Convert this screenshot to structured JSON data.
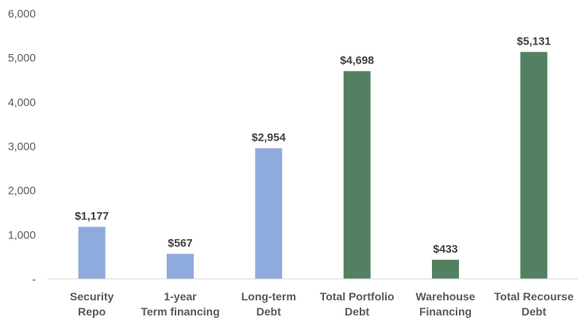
{
  "chart_data": {
    "type": "bar",
    "categories": [
      [
        "Security",
        "Repo"
      ],
      [
        "1-year",
        "Term financing"
      ],
      [
        "Long-term",
        "Debt"
      ],
      [
        "Total Portfolio",
        "Debt"
      ],
      [
        "Warehouse",
        "Financing"
      ],
      [
        "Total Recourse",
        "Debt"
      ]
    ],
    "values": [
      1177,
      567,
      2954,
      4698,
      433,
      5131
    ],
    "data_labels": [
      "$1,177",
      "$567",
      "$2,954",
      "$4,698",
      "$433",
      "$5,131"
    ],
    "bar_colors": [
      "#8FAADC",
      "#8FAADC",
      "#8FAADC",
      "#548062",
      "#548062",
      "#548062"
    ],
    "y_ticks": [
      {
        "value": 0,
        "label": "-"
      },
      {
        "value": 1000,
        "label": "1,000"
      },
      {
        "value": 2000,
        "label": "2,000"
      },
      {
        "value": 3000,
        "label": "3,000"
      },
      {
        "value": 4000,
        "label": "4,000"
      },
      {
        "value": 5000,
        "label": "5,000"
      },
      {
        "value": 6000,
        "label": "6,000"
      }
    ],
    "ylim": [
      0,
      6000
    ],
    "grid": false,
    "legend": "none",
    "title": "",
    "xlabel": "",
    "ylabel": ""
  }
}
